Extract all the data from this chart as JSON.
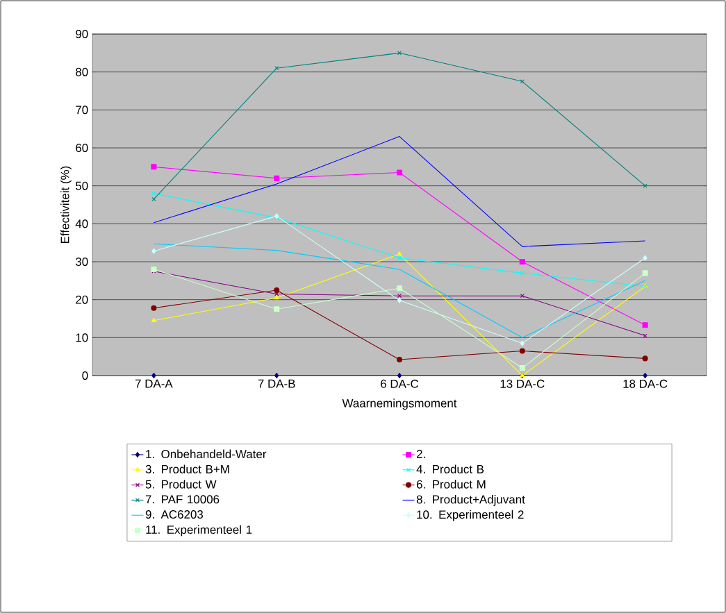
{
  "chart_data": {
    "type": "line",
    "xlabel": "Waarnemingsmoment",
    "ylabel": "Effectiviteit (%)",
    "categories": [
      "7 DA-A",
      "7 DA-B",
      "6 DA-C",
      "13 DA-C",
      "18 DA-C"
    ],
    "ylim": [
      0,
      90
    ],
    "yticks": [
      0,
      10,
      20,
      30,
      40,
      50,
      60,
      70,
      80,
      90
    ],
    "grid": "y",
    "legend": "bottom",
    "series": [
      {
        "name": "1. Onbehandeld-Water",
        "color": "#000080",
        "marker": "diamond",
        "values": [
          0,
          0,
          0,
          0,
          0
        ]
      },
      {
        "name": "2.",
        "color": "#ff00ff",
        "marker": "square",
        "values": [
          55,
          52,
          53.5,
          30,
          13.3
        ]
      },
      {
        "name": "3. Product B+M",
        "color": "#ffff00",
        "marker": "triangle",
        "values": [
          14.5,
          20.5,
          32,
          0,
          23.5
        ]
      },
      {
        "name": "4. Product B",
        "color": "#00ffff",
        "marker": "cross",
        "values": [
          48,
          41.5,
          31,
          27,
          23.5
        ]
      },
      {
        "name": "5. Product W",
        "color": "#800080",
        "marker": "cross",
        "values": [
          27.5,
          21.5,
          21,
          21,
          10.5
        ]
      },
      {
        "name": "6. Product M",
        "color": "#800000",
        "marker": "circle",
        "values": [
          17.8,
          22.5,
          4.2,
          6.5,
          4.5
        ]
      },
      {
        "name": "7. PAF 10006",
        "color": "#008080",
        "marker": "cross",
        "values": [
          46.5,
          81,
          85,
          77.5,
          50
        ]
      },
      {
        "name": "8. Product+Adjuvant",
        "color": "#0000ff",
        "marker": "none",
        "values": [
          40.3,
          50.5,
          63,
          34,
          35.5
        ]
      },
      {
        "name": "9. AC6203",
        "color": "#00ccff",
        "marker": "none",
        "values": [
          34.7,
          33,
          28,
          10,
          25
        ]
      },
      {
        "name": "10. Experimenteel 2",
        "color": "#ccffff",
        "marker": "diamond",
        "values": [
          32.8,
          42,
          19.8,
          8.5,
          31
        ]
      },
      {
        "name": "11. Experimenteel 1",
        "color": "#ccffcc",
        "marker": "square",
        "values": [
          28,
          17.5,
          23,
          2,
          27
        ]
      }
    ]
  }
}
